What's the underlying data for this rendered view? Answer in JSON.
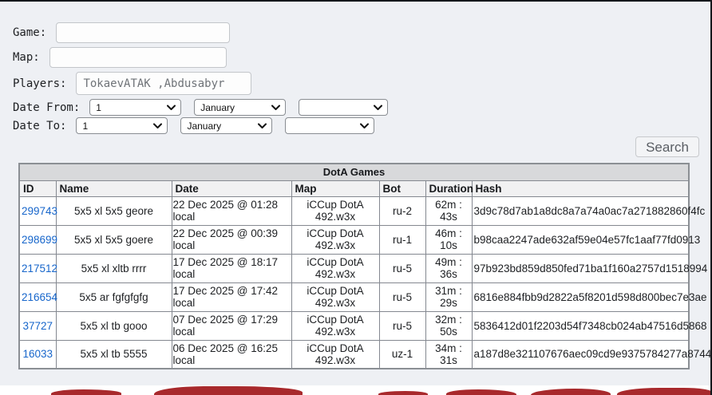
{
  "colors": {
    "page_bg": "#eef0f4",
    "frame_border": "#15181c",
    "link_blue": "#1766cb",
    "caption_bg": "#d8d9db",
    "header_bg": "#f1f1f2",
    "art_red": "#a8292c"
  },
  "form": {
    "game": {
      "label": "Game:",
      "value": ""
    },
    "map": {
      "label": "Map:",
      "value": ""
    },
    "players": {
      "label": "Players:",
      "value": "TokaevATAK ,Abdusabyr"
    },
    "date_from": {
      "label": "Date From:",
      "day": "1",
      "month": "January",
      "year": ""
    },
    "date_to": {
      "label": "Date To:",
      "day": "1",
      "month": "January",
      "year": ""
    },
    "search_label": "Search"
  },
  "table": {
    "caption": "DotA Games",
    "columns": [
      "ID",
      "Name",
      "Date",
      "Map",
      "Bot",
      "Duration",
      "Hash"
    ],
    "rows": [
      {
        "id": "299743",
        "name": "5x5 xl 5x5 geore",
        "date": "22 Dec 2025 @ 01:28 local",
        "map": "iCCup DotA 492.w3x",
        "bot": "ru-2",
        "duration": "62m : 43s",
        "hash": "3d9c78d7ab1a8dc8a7a74a0ac7a271882860f4fc"
      },
      {
        "id": "298699",
        "name": "5x5 xl 5x5 goere",
        "date": "22 Dec 2025 @ 00:39 local",
        "map": "iCCup DotA 492.w3x",
        "bot": "ru-1",
        "duration": "46m : 10s",
        "hash": "b98caa2247ade632af59e04e57fc1aaf77fd0913"
      },
      {
        "id": "217512",
        "name": "5x5 xl xltb rrrr",
        "date": "17 Dec 2025 @ 18:17 local",
        "map": "iCCup DotA 492.w3x",
        "bot": "ru-5",
        "duration": "49m : 36s",
        "hash": "97b923bd859d850fed71ba1f160a2757d1518994"
      },
      {
        "id": "216654",
        "name": "5x5 ar fgfgfgfg",
        "date": "17 Dec 2025 @ 17:42 local",
        "map": "iCCup DotA 492.w3x",
        "bot": "ru-5",
        "duration": "31m : 29s",
        "hash": "6816e884fbb9d2822a5f8201d598d800bec7e3ae"
      },
      {
        "id": "37727",
        "name": "5x5 xl tb gooo",
        "date": "07 Dec 2025 @ 17:29 local",
        "map": "iCCup DotA 492.w3x",
        "bot": "ru-5",
        "duration": "32m : 50s",
        "hash": "5836412d01f2203d54f7348cb024ab47516d5868"
      },
      {
        "id": "16033",
        "name": "5x5 xl tb 5555",
        "date": "06 Dec 2025 @ 16:25 local",
        "map": "iCCup DotA 492.w3x",
        "bot": "uz-1",
        "duration": "34m : 31s",
        "hash": "a187d8e321107676aec09cd9e9375784277a8744"
      }
    ]
  }
}
